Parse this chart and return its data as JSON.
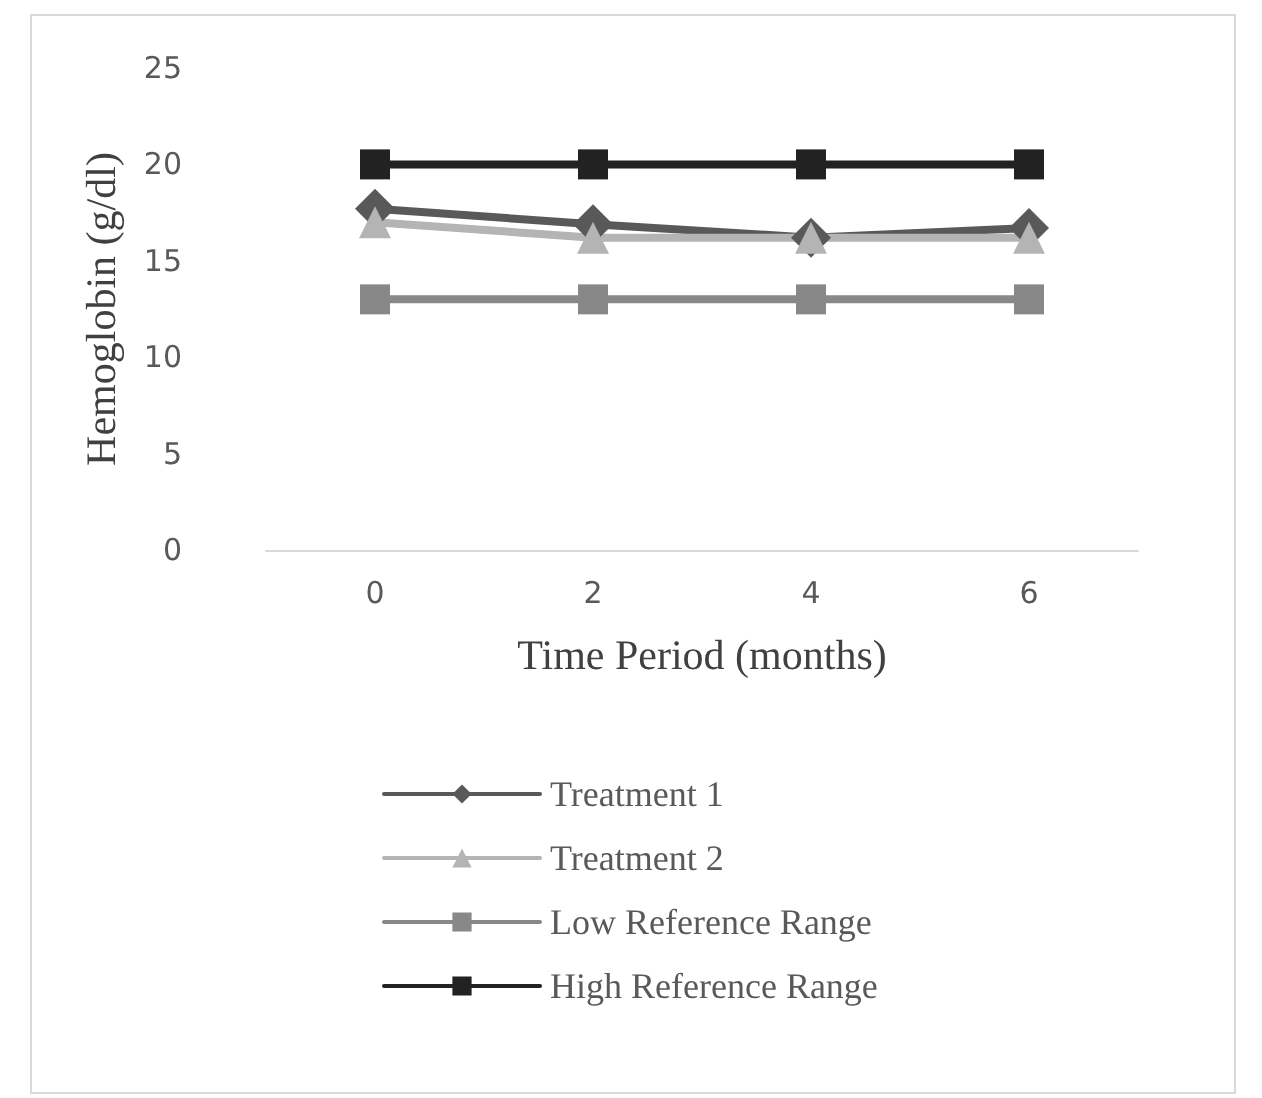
{
  "chart_data": {
    "type": "line",
    "xlabel": "Time Period (months)",
    "ylabel": "Hemoglobin (g/dl)",
    "categories": [
      "0",
      "2",
      "4",
      "6"
    ],
    "series": [
      {
        "name": "Treatment 1",
        "color": "#595959",
        "marker": "diamond",
        "values": [
          17.7,
          16.9,
          16.2,
          16.7
        ]
      },
      {
        "name": "Treatment 2",
        "color": "#b4b4b4",
        "marker": "triangle",
        "values": [
          17.0,
          16.2,
          16.2,
          16.2
        ]
      },
      {
        "name": "Low Reference Range",
        "color": "#888888",
        "marker": "square",
        "values": [
          13,
          13,
          13,
          13
        ]
      },
      {
        "name": "High Reference Range",
        "color": "#222222",
        "marker": "square",
        "values": [
          20,
          20,
          20,
          20
        ]
      }
    ],
    "ylim": [
      0,
      25
    ],
    "yticks": [
      0,
      5,
      10,
      15,
      20,
      25
    ],
    "grid": false,
    "legend": "bottom",
    "line_style": "solid"
  }
}
